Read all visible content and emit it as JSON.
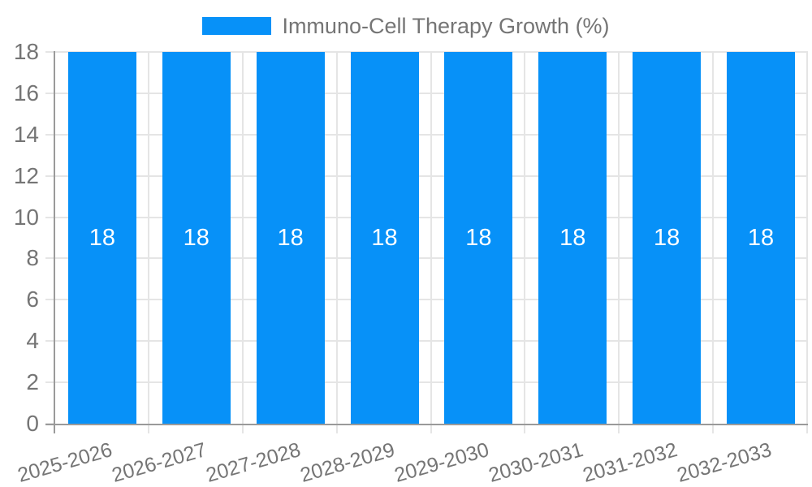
{
  "chart_data": {
    "type": "bar",
    "title": "Immuno-Cell Therapy Growth (%)",
    "categories": [
      "2025-2026",
      "2026-2027",
      "2027-2028",
      "2028-2029",
      "2029-2030",
      "2030-2031",
      "2031-2032",
      "2032-2033"
    ],
    "values": [
      18,
      18,
      18,
      18,
      18,
      18,
      18,
      18
    ],
    "value_labels": [
      "18",
      "18",
      "18",
      "18",
      "18",
      "18",
      "18",
      "18"
    ],
    "xlabel": "",
    "ylabel": "",
    "ylim": [
      0,
      18
    ],
    "ytick_step": 2,
    "ytick_labels": [
      "0",
      "2",
      "4",
      "6",
      "8",
      "10",
      "12",
      "14",
      "16",
      "18"
    ],
    "grid": "on",
    "legend": {
      "position": "top-center",
      "label": "Immuno-Cell Therapy Growth (%)"
    },
    "colors": {
      "bar": "#0791f8",
      "grid": "#e5e5e5",
      "axis": "#9a9a9a",
      "tick_text": "#757575",
      "legend_text": "#757575",
      "value_label": "#ffffff",
      "background": "#ffffff"
    }
  }
}
